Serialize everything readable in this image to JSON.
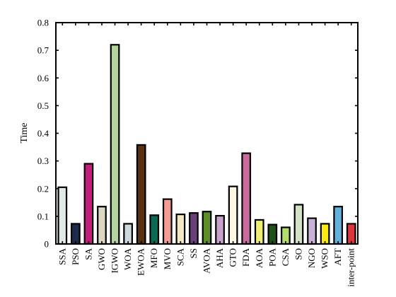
{
  "chart_data": {
    "type": "bar",
    "title": "",
    "xlabel": "",
    "ylabel": "Time",
    "ylim": [
      0,
      0.8
    ],
    "yticks": [
      0,
      0.1,
      0.2,
      0.3,
      0.4,
      0.5,
      0.6,
      0.7,
      0.8
    ],
    "ytick_labels": [
      "0",
      "0.1",
      "0.2",
      "0.3",
      "0.4",
      "0.5",
      "0.6",
      "0.7",
      "0.8"
    ],
    "grid": false,
    "categories": [
      "SSA",
      "PSO",
      "SA",
      "GWO",
      "IGWO",
      "WOA",
      "EWOA",
      "MFO",
      "MVO",
      "SCA",
      "SS",
      "AVOA",
      "AHA",
      "GTO",
      "FDA",
      "AOA",
      "POA",
      "CSA",
      "SO",
      "NGO",
      "WSO",
      "AFT",
      "inter-point"
    ],
    "values": [
      0.205,
      0.073,
      0.29,
      0.135,
      0.72,
      0.073,
      0.358,
      0.104,
      0.162,
      0.107,
      0.112,
      0.117,
      0.102,
      0.208,
      0.328,
      0.087,
      0.07,
      0.06,
      0.142,
      0.093,
      0.073,
      0.135,
      0.073
    ],
    "colors": [
      "#dfe9e6",
      "#1d2c4c",
      "#c21f7c",
      "#ddd6c0",
      "#b3d49e",
      "#cdd8de",
      "#5a3210",
      "#0a6b54",
      "#f49c94",
      "#f1e8c4",
      "#6b3f77",
      "#5e8f27",
      "#c8a2cc",
      "#fdf7e4",
      "#c86a9c",
      "#f0ef72",
      "#1f5218",
      "#b2dc6b",
      "#d3e2c4",
      "#c9b2d8",
      "#fbea10",
      "#62b2dc",
      "#e0343c"
    ]
  }
}
